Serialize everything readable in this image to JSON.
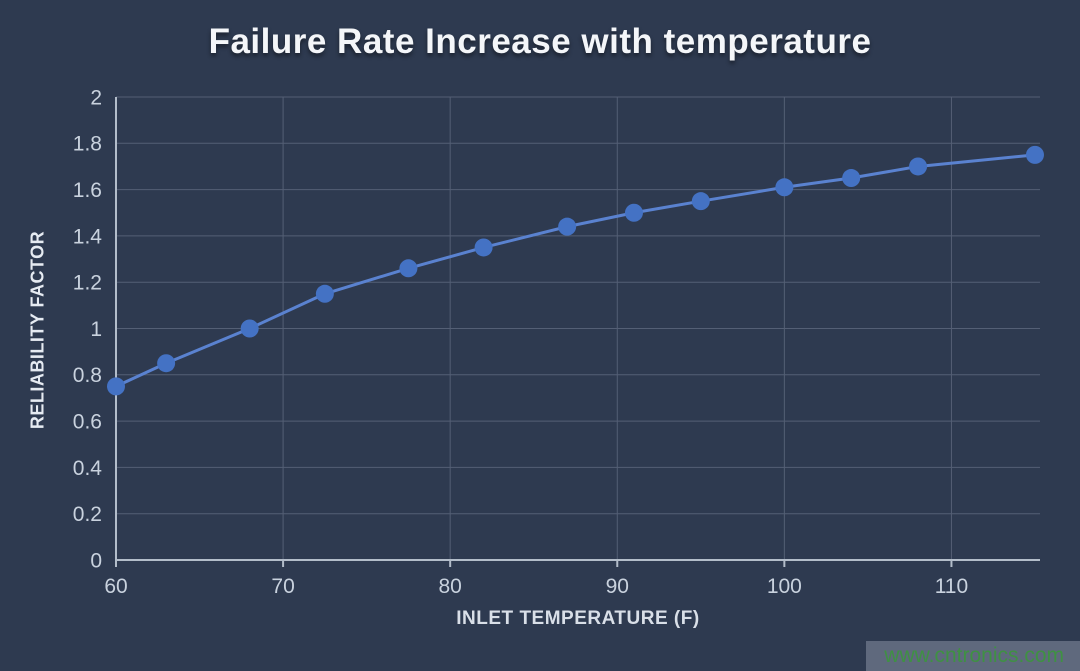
{
  "watermark": {
    "text": "www.cntronics.com",
    "color": "#3f9143"
  },
  "chart_data": {
    "type": "line",
    "title": "Failure Rate Increase with temperature",
    "xlabel": "INLET TEMPERATURE (F)",
    "ylabel": "RELIABILITY FACTOR",
    "x": [
      60,
      63,
      68,
      72.5,
      77.5,
      82,
      87,
      91,
      95,
      100,
      104,
      108,
      115
    ],
    "series": [
      {
        "name": "Reliability Factor",
        "values": [
          0.75,
          0.85,
          1.0,
          1.15,
          1.26,
          1.35,
          1.44,
          1.5,
          1.55,
          1.61,
          1.65,
          1.7,
          1.75
        ]
      }
    ],
    "xlim": [
      60,
      115.3
    ],
    "ylim": [
      0,
      2
    ],
    "xticks": [
      60,
      70,
      80,
      90,
      100,
      110
    ],
    "yticks": [
      0,
      0.2,
      0.4,
      0.6,
      0.8,
      1,
      1.2,
      1.4,
      1.6,
      1.8,
      2
    ],
    "grid": true,
    "legend": false,
    "marker_radius": 9,
    "line_width": 3,
    "colors": {
      "background": "#2e3a50",
      "line": "#5a82d0",
      "marker": "#4472c4",
      "grid": "#545f75",
      "axis": "#b3bdca",
      "tick_label": "#c9d2de",
      "title": "#f4f6f9",
      "axis_label": "#d9dfe8"
    }
  }
}
